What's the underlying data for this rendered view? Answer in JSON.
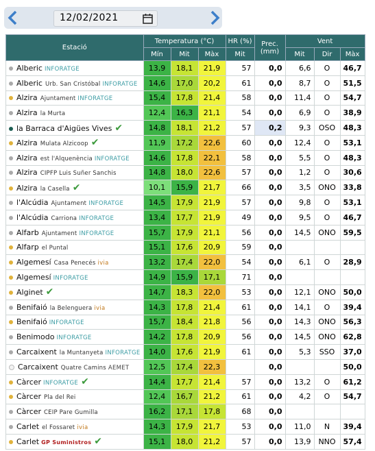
{
  "date": "12/02/2021",
  "table": {
    "headers": {
      "station": "Estació",
      "temperature": "Temperatura (°C)",
      "humidity": "HR (%)",
      "precipitation": "Prec. (mm)",
      "wind": "Vent"
    },
    "subheaders": [
      "Mín",
      "Mit",
      "Màx",
      "Mit",
      "Mit",
      "Dir",
      "Màx"
    ],
    "network_colors": {
      "INFORATGE": "#3a9ba3",
      "ivia": "#c27a1e",
      "AEMET": "#444444",
      "GP Suministros": "#b01c1c"
    },
    "rows": [
      {
        "station": "Alberic",
        "network": "INFORATGE",
        "dot": "#a9a9a9",
        "cells": [
          "13,9",
          "18,1",
          "21,9",
          "57",
          "0,0",
          "6,6",
          "O",
          "46,7"
        ]
      },
      {
        "station": "Alberic",
        "place": "Urb. San Cristóbal",
        "network": "INFORATGE",
        "dot": "#a9a9a9",
        "cells": [
          "14,6",
          "17,0",
          "20,2",
          "61",
          "0,0",
          "8,7",
          "O",
          "51,5"
        ]
      },
      {
        "station": "Alzira",
        "place": "Ajuntament",
        "network": "INFORATGE",
        "dot": "#e0b23c",
        "cells": [
          "15,4",
          "17,8",
          "21,4",
          "58",
          "0,0",
          "11,4",
          "O",
          "54,7"
        ]
      },
      {
        "station": "Alzira",
        "place": "la Murta",
        "dot": "#a9a9a9",
        "cells": [
          "12,4",
          "16,3",
          "21,1",
          "54",
          "0,0",
          "6,9",
          "O",
          "38,9"
        ]
      },
      {
        "station": "la Barraca d'Aigües Vives",
        "check": true,
        "dot": "#1d5e53",
        "cells": [
          "14,8",
          "18,1",
          "21,2",
          "57",
          "0,2",
          "9,3",
          "OSO",
          "48,3"
        ]
      },
      {
        "station": "Alzira",
        "place": "Mulata Alzicoop",
        "check": true,
        "dot": "#e0b23c",
        "cells": [
          "11,9",
          "17,2",
          "22,6",
          "60",
          "0,0",
          "12,4",
          "O",
          "53,1"
        ]
      },
      {
        "station": "Alzira",
        "place": "est l'Alquenència",
        "network": "INFORATGE",
        "dot": "#a9a9a9",
        "cells": [
          "14,6",
          "17,8",
          "22,1",
          "58",
          "0,0",
          "5,5",
          "O",
          "48,3"
        ]
      },
      {
        "station": "Alzira",
        "place": "CIPFP Luis Suñer Sanchis",
        "dot": "#a9a9a9",
        "cells": [
          "14,8",
          "18,0",
          "22,6",
          "57",
          "0,0",
          "1,2",
          "O",
          "30,6"
        ]
      },
      {
        "station": "Alzira",
        "place": "la Casella",
        "check": true,
        "dot": "#e0b23c",
        "cells": [
          "10,1",
          "15,9",
          "21,7",
          "66",
          "0,0",
          "3,5",
          "ONO",
          "33,8"
        ]
      },
      {
        "station": "l'Alcúdia",
        "place": "Ajuntament",
        "network": "INFORATGE",
        "dot": "#a9a9a9",
        "cells": [
          "14,5",
          "17,9",
          "21,9",
          "57",
          "0,0",
          "9,8",
          "O",
          "53,1"
        ]
      },
      {
        "station": "l'Alcúdia",
        "place": "Carriona",
        "network": "INFORATGE",
        "dot": "#a9a9a9",
        "cells": [
          "13,4",
          "17,7",
          "21,9",
          "49",
          "0,0",
          "9,5",
          "O",
          "46,7"
        ]
      },
      {
        "station": "Alfarb",
        "place": "Ajuntament",
        "network": "INFORATGE",
        "dot": "#a9a9a9",
        "cells": [
          "15,7",
          "17,9",
          "21,1",
          "56",
          "0,0",
          "14,5",
          "ONO",
          "59,5"
        ]
      },
      {
        "station": "Alfarp",
        "place": "el Puntal",
        "dot": "#e0b23c",
        "cells": [
          "15,1",
          "17,6",
          "20,9",
          "59",
          "0,0",
          null,
          null,
          null
        ]
      },
      {
        "station": "Algemesí",
        "place": "Casa Penecés",
        "network": "ivia",
        "dot": "#e0b23c",
        "cells": [
          "13,2",
          "17,4",
          "22,0",
          "54",
          "0,0",
          "6,1",
          "O",
          "28,9"
        ]
      },
      {
        "station": "Algemesí",
        "network": "INFORATGE",
        "dot": "#e0b23c",
        "cells": [
          "14,9",
          "15,9",
          "17,1",
          "71",
          "0,0",
          null,
          null,
          null
        ]
      },
      {
        "station": "Alginet",
        "check": true,
        "dot": "#e0b23c",
        "cells": [
          "14,7",
          "18,3",
          "22,0",
          "53",
          "0,0",
          "12,1",
          "ONO",
          "50,0"
        ]
      },
      {
        "station": "Benifaió",
        "place": "la Belenguera",
        "network": "ivia",
        "dot": "#a9a9a9",
        "cells": [
          "14,3",
          "17,8",
          "21,4",
          "61",
          "0,0",
          "14,1",
          "O",
          "39,4"
        ]
      },
      {
        "station": "Benifaió",
        "network": "INFORATGE",
        "dot": "#e0b23c",
        "cells": [
          "15,7",
          "18,4",
          "21,8",
          "56",
          "0,0",
          "14,3",
          "ONO",
          "56,3"
        ]
      },
      {
        "station": "Benimodo",
        "network": "INFORATGE",
        "dot": "#a9a9a9",
        "cells": [
          "14,2",
          "17,8",
          "20,9",
          "56",
          "0,0",
          "14,5",
          "ONO",
          "62,8"
        ]
      },
      {
        "station": "Carcaixent",
        "place": "la Muntanyeta",
        "network": "INFORATGE",
        "dot": "#a9a9a9",
        "cells": [
          "14,0",
          "17,6",
          "21,9",
          "61",
          "0,0",
          "5,3",
          "SSO",
          "37,0"
        ]
      },
      {
        "station": "Carcaixent",
        "place": "Quatre Camins",
        "network": "AEMET",
        "dot": "#f3f3f3",
        "cells": [
          "12,5",
          "17,4",
          "22,3",
          null,
          "0,0",
          null,
          null,
          "50,0"
        ]
      },
      {
        "station": "Càrcer",
        "network": "INFORATGE",
        "check": true,
        "dot": "#e0b23c",
        "cells": [
          "14,4",
          "17,7",
          "21,4",
          "57",
          "0,0",
          "13,2",
          "O",
          "61,2"
        ]
      },
      {
        "station": "Càrcer",
        "place": "Pla del Rei",
        "dot": "#e0b23c",
        "cells": [
          "12,4",
          "16,7",
          "21,2",
          "61",
          "0,0",
          "4,2",
          "O",
          "54,7"
        ]
      },
      {
        "station": "Càrcer",
        "place": "CEIP Pare Gumilla",
        "dot": "#a9a9a9",
        "cells": [
          "16,2",
          "17,1",
          "17,8",
          "68",
          "0,0",
          null,
          null,
          null
        ]
      },
      {
        "station": "Carlet",
        "place": "el Fossaret",
        "network": "ivia",
        "dot": "#a9a9a9",
        "cells": [
          "14,3",
          "17,9",
          "21,7",
          "53",
          "0,0",
          "11,0",
          "N",
          "39,4"
        ]
      },
      {
        "station": "Carlet",
        "network": "GP Suministros",
        "check": true,
        "dot": "#e0b23c",
        "cells": [
          "15,1",
          "18,0",
          "21,2",
          "57",
          "0,0",
          "13,9",
          "NNO",
          "57,4"
        ]
      }
    ]
  }
}
